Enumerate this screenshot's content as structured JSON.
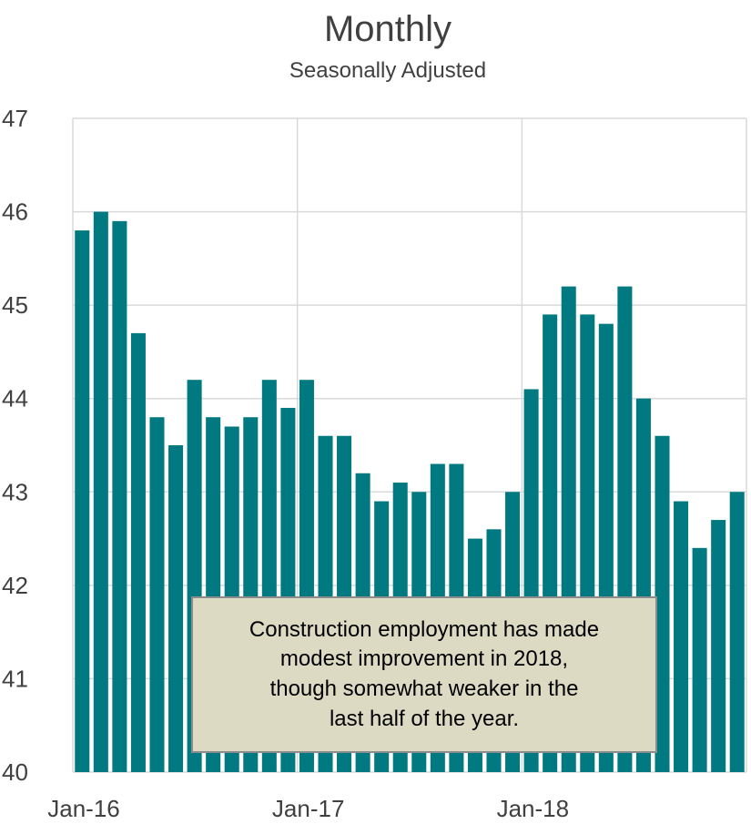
{
  "chart_data": {
    "type": "bar",
    "title": "Monthly",
    "subtitle": "Seasonally Adjusted",
    "xlabel": "",
    "ylabel": "",
    "ylim": [
      40,
      47
    ],
    "yticks": [
      "40",
      "41",
      "42",
      "43",
      "44",
      "45",
      "46",
      "47"
    ],
    "xticks": [
      "Jan-16",
      "Jan-17",
      "Jan-18"
    ],
    "grid": true,
    "bar_color": "#007a80",
    "categories": [
      "Jan-16",
      "Feb-16",
      "Mar-16",
      "Apr-16",
      "May-16",
      "Jun-16",
      "Jul-16",
      "Aug-16",
      "Sep-16",
      "Oct-16",
      "Nov-16",
      "Dec-16",
      "Jan-17",
      "Feb-17",
      "Mar-17",
      "Apr-17",
      "May-17",
      "Jun-17",
      "Jul-17",
      "Aug-17",
      "Sep-17",
      "Oct-17",
      "Nov-17",
      "Dec-17",
      "Jan-18",
      "Feb-18",
      "Mar-18",
      "Apr-18",
      "May-18",
      "Jun-18",
      "Jul-18",
      "Aug-18",
      "Sep-18",
      "Oct-18",
      "Nov-18",
      "Dec-18"
    ],
    "values": [
      45.8,
      46.0,
      45.9,
      44.7,
      43.8,
      43.5,
      44.2,
      43.8,
      43.7,
      43.8,
      44.2,
      43.9,
      44.2,
      43.6,
      43.6,
      43.2,
      42.9,
      43.1,
      43.0,
      43.3,
      43.3,
      42.5,
      42.6,
      43.0,
      44.1,
      44.9,
      45.2,
      44.9,
      44.8,
      45.2,
      44.0,
      43.6,
      42.9,
      42.4,
      42.7,
      43.0
    ],
    "annotation": [
      "Construction employment has made",
      "modest improvement in 2018,",
      "though somewhat weaker in the",
      "last half of the year."
    ]
  }
}
